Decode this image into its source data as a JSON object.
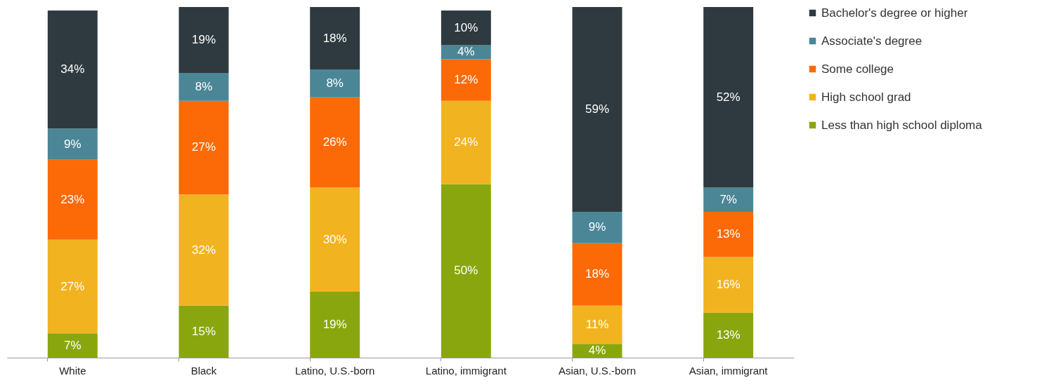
{
  "chart_data": {
    "type": "bar",
    "stacked": true,
    "legend": "right",
    "categories": [
      "White",
      "Black",
      "Latino, U.S.-born",
      "Latino, immigrant",
      "Asian, U.S.-born",
      "Asian, immigrant"
    ],
    "series": [
      {
        "name": "Less than high school diploma",
        "color": "#8aa60f",
        "values": [
          7,
          15,
          19,
          50,
          4,
          13
        ],
        "value_labels": [
          "7%",
          "15%",
          "19%",
          "50%",
          "4%",
          "13%"
        ]
      },
      {
        "name": "High school grad",
        "color": "#f2b320",
        "values": [
          27,
          32,
          30,
          24,
          11,
          16
        ],
        "value_labels": [
          "27%",
          "32%",
          "30%",
          "24%",
          "11%",
          "16%"
        ]
      },
      {
        "name": "Some college",
        "color": "#fc6a08",
        "values": [
          23,
          27,
          26,
          12,
          18,
          13
        ],
        "value_labels": [
          "23%",
          "27%",
          "26%",
          "12%",
          "18%",
          "13%"
        ]
      },
      {
        "name": "Associate's degree",
        "color": "#4a8696",
        "values": [
          9,
          8,
          8,
          4,
          9,
          7
        ],
        "value_labels": [
          "9%",
          "8%",
          "8%",
          "4%",
          "9%",
          "7%"
        ]
      },
      {
        "name": "Bachelor's degree or higher",
        "color": "#2e3a3f",
        "values": [
          34,
          19,
          18,
          10,
          59,
          52
        ],
        "value_labels": [
          "34%",
          "19%",
          "18%",
          "10%",
          "59%",
          "52%"
        ]
      }
    ]
  }
}
